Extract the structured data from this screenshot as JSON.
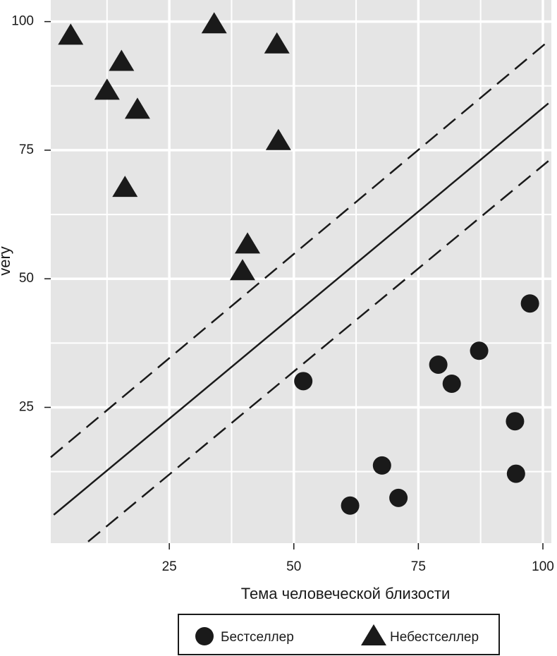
{
  "chart_data": {
    "type": "scatter",
    "x_label": "Тема человеческой близости",
    "y_label": "very",
    "xlim": [
      1.2,
      101.7
    ],
    "ylim": [
      -1.4,
      104.2
    ],
    "xticks": [
      25,
      50,
      75,
      100
    ],
    "yticks": [
      25,
      50,
      75,
      100
    ],
    "minor_xticks": [
      12.5,
      37.5,
      62.5,
      87.5
    ],
    "minor_yticks": [
      12.5,
      37.5,
      62.5,
      87.5
    ],
    "grid": true,
    "series": [
      {
        "name": "Бестселлер",
        "marker": "circle",
        "color": "#1a1a1a",
        "x": [
          51.9,
          61.3,
          67.7,
          71.0,
          79.0,
          81.7,
          87.2,
          97.4,
          94.4,
          94.6
        ],
        "values": [
          30.1,
          5.9,
          13.7,
          7.4,
          33.3,
          29.6,
          36.0,
          45.2,
          22.3,
          12.1
        ]
      },
      {
        "name": "Небестселлер",
        "marker": "triangle",
        "color": "#1a1a1a",
        "x": [
          5.2,
          15.4,
          12.5,
          18.6,
          34.0,
          46.6,
          16.1,
          46.9,
          40.7,
          39.7
        ],
        "values": [
          97.3,
          92.2,
          86.6,
          82.9,
          99.5,
          95.6,
          67.7,
          76.8,
          56.7,
          51.5
        ]
      }
    ],
    "lines": [
      {
        "dash": "solid",
        "color": "#1a1a1a",
        "x": [
          1.8,
          101.1
        ],
        "values": [
          4.1,
          84.1
        ]
      },
      {
        "dash": "dashed",
        "color": "#1a1a1a",
        "x": [
          1.2,
          101.1
        ],
        "values": [
          15.3,
          96.2
        ]
      },
      {
        "dash": "dashed",
        "color": "#1a1a1a",
        "x": [
          8.7,
          101.1
        ],
        "values": [
          -1.1,
          72.9
        ]
      }
    ]
  }
}
